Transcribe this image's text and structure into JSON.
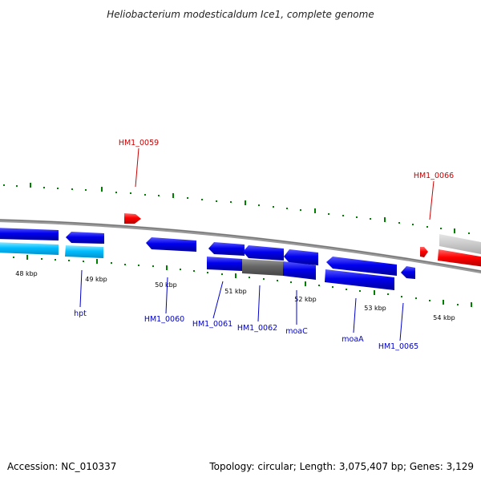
{
  "map": {
    "title": "Heliobacterium modesticaldum Ice1, complete genome",
    "accession_text": "Accession: NC_010337",
    "summary_text": "Topology: circular; Length: 3,075,407 bp; Genes: 3,129"
  },
  "scale": {
    "ticks": [
      "48 kbp",
      "49 kbp",
      "50 kbp",
      "51 kbp",
      "52 kbp",
      "53 kbp",
      "54 kbp"
    ]
  },
  "genes_top": [
    {
      "id": "g59",
      "label": "HM1_0059",
      "color": "#cc0000"
    },
    {
      "id": "g66",
      "label": "HM1_0066",
      "color": "#cc0000"
    }
  ],
  "genes_bottom": [
    {
      "id": "hpt",
      "label": "hpt",
      "color": "#0000cc"
    },
    {
      "id": "g60",
      "label": "HM1_0060",
      "color": "#0000cc"
    },
    {
      "id": "g61",
      "label": "HM1_0061",
      "color": "#0000cc"
    },
    {
      "id": "g62",
      "label": "HM1_0062",
      "color": "#0000cc"
    },
    {
      "id": "moac",
      "label": "moaC",
      "color": "#0000cc"
    },
    {
      "id": "moaa",
      "label": "moaA",
      "color": "#0000cc"
    },
    {
      "id": "g65",
      "label": "HM1_0065",
      "color": "#0000cc"
    }
  ],
  "colors": {
    "forward_gene": "#ff0000",
    "reverse_gene": "#0000ee",
    "rna_gene": "#00bfff",
    "pseudo_gene": "#666666",
    "backbone": "#888888",
    "tick": "#008000"
  }
}
